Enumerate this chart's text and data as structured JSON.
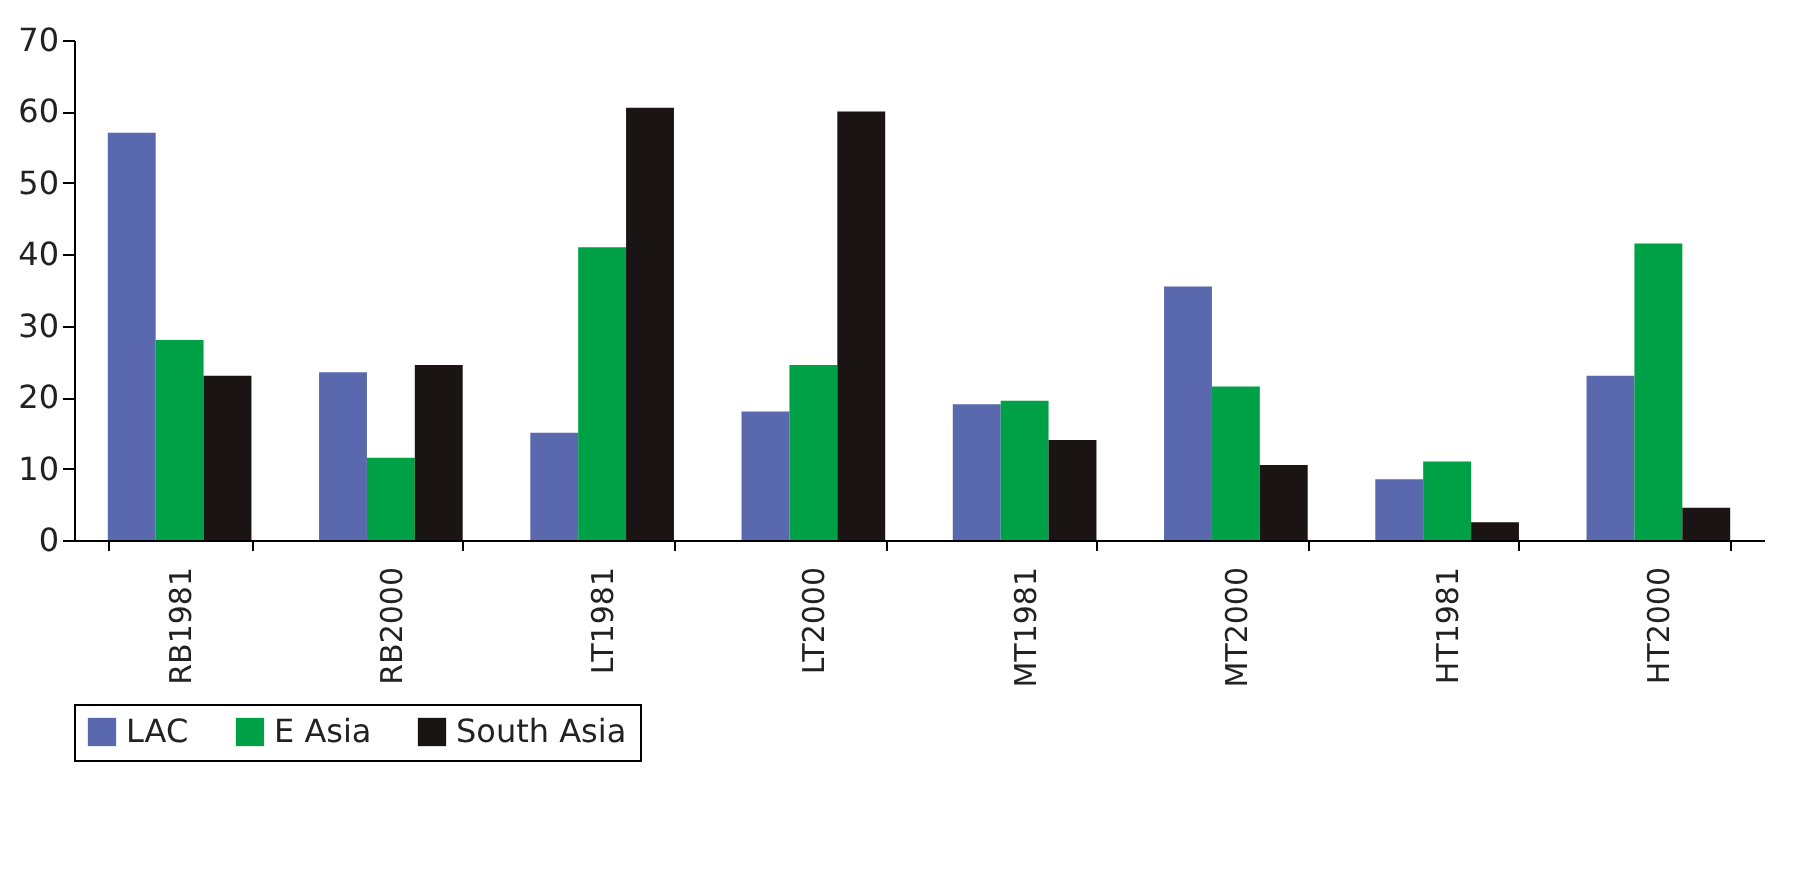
{
  "chart_data": {
    "type": "bar",
    "categories": [
      "RB1981",
      "RB2000",
      "LT1981",
      "LT2000",
      "MT1981",
      "MT2000",
      "HT1981",
      "HT2000"
    ],
    "series": [
      {
        "name": "LAC",
        "color": "#5a68ad",
        "values": [
          57,
          23.5,
          15,
          18,
          19,
          35.5,
          8.5,
          23
        ]
      },
      {
        "name": "E Asia",
        "color": "#00a046",
        "values": [
          28,
          11.5,
          41,
          24.5,
          19.5,
          21.5,
          11,
          41.5
        ]
      },
      {
        "name": "South Asia",
        "color": "#1a1414",
        "values": [
          23,
          24.5,
          60.5,
          60,
          14,
          10.5,
          2.5,
          4.5
        ]
      }
    ],
    "ylim": [
      0,
      70
    ],
    "yticks": [
      0,
      10,
      20,
      30,
      40,
      50,
      60,
      70
    ],
    "grid": false,
    "legend": "bottom"
  }
}
